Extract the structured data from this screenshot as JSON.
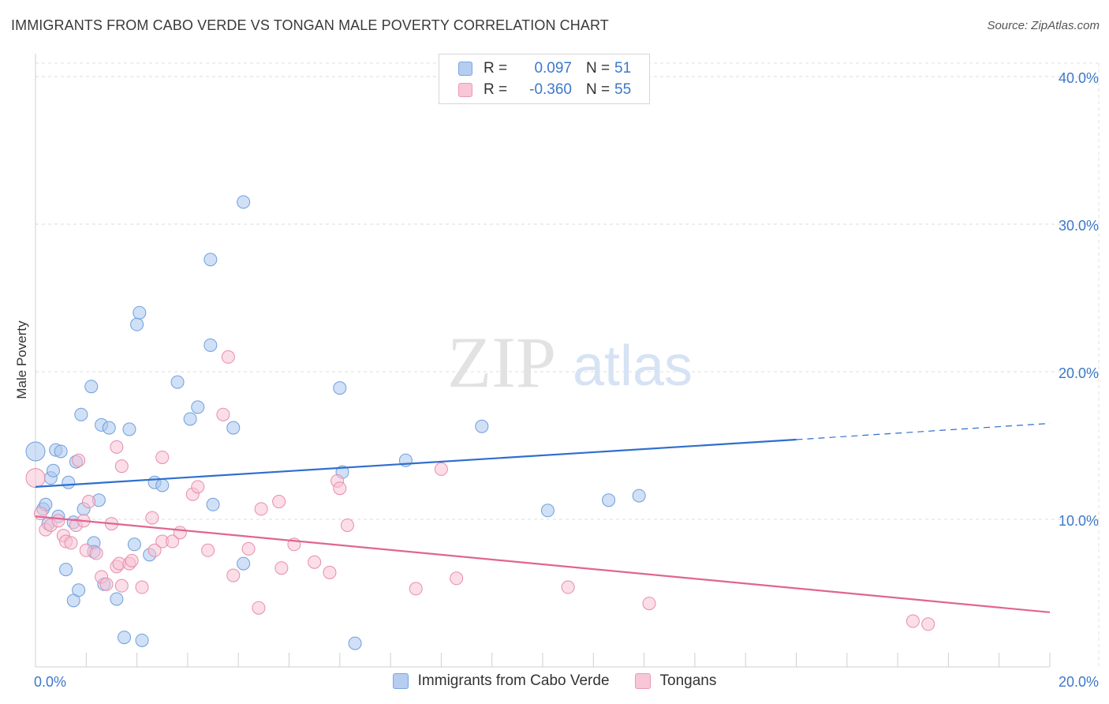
{
  "header": {
    "title": "IMMIGRANTS FROM CABO VERDE VS TONGAN MALE POVERTY CORRELATION CHART",
    "source": "Source: ZipAtlas.com"
  },
  "watermark": {
    "zip": "ZIP",
    "atlas": "atlas"
  },
  "legend": {
    "rows": [
      {
        "r_label": "R =",
        "r_value": "0.097",
        "n_label": "N =",
        "n_value": "51",
        "color": "#b5cdf0",
        "border": "#7aa6e0"
      },
      {
        "r_label": "R =",
        "r_value": "-0.360",
        "n_label": "N =",
        "n_value": "55",
        "color": "#f8c6d6",
        "border": "#eb9ab6"
      }
    ]
  },
  "bottom_legend": {
    "items": [
      {
        "label": "Immigrants from Cabo Verde",
        "color": "#b5cdf0",
        "border": "#7aa6e0"
      },
      {
        "label": "Tongans",
        "color": "#f8c6d6",
        "border": "#eb9ab6"
      }
    ]
  },
  "chart_data": {
    "type": "scatter",
    "title": "IMMIGRANTS FROM CABO VERDE VS TONGAN MALE POVERTY CORRELATION CHART",
    "xlabel": "",
    "ylabel": "Male Poverty",
    "xlim": [
      0,
      20
    ],
    "ylim": [
      0,
      40
    ],
    "x_tick_labels": [
      {
        "value": 0,
        "label": "0.0%"
      },
      {
        "value": 20,
        "label": "20.0%"
      }
    ],
    "y_tick_labels": [
      {
        "value": 10,
        "label": "10.0%"
      },
      {
        "value": 20,
        "label": "20.0%"
      },
      {
        "value": 30,
        "label": "30.0%"
      },
      {
        "value": 40,
        "label": "40.0%"
      }
    ],
    "series": [
      {
        "name": "Immigrants from Cabo Verde",
        "color": "#a9c6ee",
        "stroke": "#6f9fdc",
        "line_color": "#2f6fcd",
        "trend": {
          "x0": 0,
          "y0": 12.2,
          "x1": 15,
          "y1": 15.4,
          "dash_to_x": 20,
          "dash_to_y": 16.5
        },
        "points": [
          [
            0.0,
            14.6
          ],
          [
            0.15,
            10.7
          ],
          [
            0.2,
            11.0
          ],
          [
            0.25,
            9.7
          ],
          [
            0.3,
            12.8
          ],
          [
            0.35,
            13.3
          ],
          [
            0.4,
            14.7
          ],
          [
            0.45,
            10.2
          ],
          [
            0.5,
            14.6
          ],
          [
            0.6,
            6.6
          ],
          [
            0.65,
            12.5
          ],
          [
            0.75,
            9.8
          ],
          [
            0.75,
            4.5
          ],
          [
            0.8,
            13.9
          ],
          [
            0.85,
            5.2
          ],
          [
            0.9,
            17.1
          ],
          [
            0.95,
            10.7
          ],
          [
            1.1,
            19.0
          ],
          [
            1.15,
            8.4
          ],
          [
            1.15,
            7.8
          ],
          [
            1.25,
            11.3
          ],
          [
            1.3,
            16.4
          ],
          [
            1.35,
            5.6
          ],
          [
            1.45,
            16.2
          ],
          [
            1.6,
            4.6
          ],
          [
            1.75,
            2.0
          ],
          [
            1.85,
            16.1
          ],
          [
            1.95,
            8.3
          ],
          [
            2.0,
            23.2
          ],
          [
            2.05,
            24.0
          ],
          [
            2.1,
            1.8
          ],
          [
            2.25,
            7.6
          ],
          [
            2.35,
            12.5
          ],
          [
            2.5,
            12.3
          ],
          [
            2.8,
            19.3
          ],
          [
            3.05,
            16.8
          ],
          [
            3.2,
            17.6
          ],
          [
            3.45,
            21.8
          ],
          [
            3.45,
            27.6
          ],
          [
            3.5,
            11.0
          ],
          [
            3.9,
            16.2
          ],
          [
            4.1,
            7.0
          ],
          [
            4.1,
            31.5
          ],
          [
            6.0,
            18.9
          ],
          [
            6.05,
            13.2
          ],
          [
            6.3,
            1.6
          ],
          [
            7.3,
            14.0
          ],
          [
            8.8,
            16.3
          ],
          [
            10.1,
            10.6
          ],
          [
            11.3,
            11.3
          ],
          [
            11.9,
            11.6
          ]
        ]
      },
      {
        "name": "Tongans",
        "color": "#f8c2d3",
        "stroke": "#e88cae",
        "line_color": "#e06593",
        "trend": {
          "x0": 0,
          "y0": 10.2,
          "x1": 20,
          "y1": 3.7
        },
        "points": [
          [
            0.0,
            12.8
          ],
          [
            0.1,
            10.4
          ],
          [
            0.2,
            9.3
          ],
          [
            0.3,
            9.6
          ],
          [
            0.45,
            9.9
          ],
          [
            0.55,
            8.9
          ],
          [
            0.6,
            8.5
          ],
          [
            0.7,
            8.4
          ],
          [
            0.8,
            9.6
          ],
          [
            0.85,
            14.0
          ],
          [
            0.95,
            9.9
          ],
          [
            1.0,
            7.9
          ],
          [
            1.05,
            11.2
          ],
          [
            1.2,
            7.7
          ],
          [
            1.3,
            6.1
          ],
          [
            1.4,
            5.6
          ],
          [
            1.5,
            9.7
          ],
          [
            1.6,
            6.8
          ],
          [
            1.6,
            14.9
          ],
          [
            1.65,
            7.0
          ],
          [
            1.7,
            13.6
          ],
          [
            1.7,
            5.5
          ],
          [
            1.85,
            7.0
          ],
          [
            1.9,
            7.2
          ],
          [
            2.1,
            5.4
          ],
          [
            2.3,
            10.1
          ],
          [
            2.35,
            7.9
          ],
          [
            2.5,
            8.5
          ],
          [
            2.5,
            14.2
          ],
          [
            2.7,
            8.5
          ],
          [
            2.85,
            9.1
          ],
          [
            3.1,
            11.7
          ],
          [
            3.2,
            12.2
          ],
          [
            3.4,
            7.9
          ],
          [
            3.7,
            17.1
          ],
          [
            3.8,
            21.0
          ],
          [
            3.9,
            6.2
          ],
          [
            4.2,
            8.0
          ],
          [
            4.4,
            4.0
          ],
          [
            4.45,
            10.7
          ],
          [
            4.8,
            11.2
          ],
          [
            4.85,
            6.7
          ],
          [
            5.1,
            8.3
          ],
          [
            5.5,
            7.1
          ],
          [
            5.8,
            6.4
          ],
          [
            5.95,
            12.6
          ],
          [
            6.0,
            12.1
          ],
          [
            6.15,
            9.6
          ],
          [
            7.5,
            5.3
          ],
          [
            8.0,
            13.4
          ],
          [
            8.3,
            6.0
          ],
          [
            10.5,
            5.4
          ],
          [
            12.1,
            4.3
          ],
          [
            17.3,
            3.1
          ],
          [
            17.6,
            2.9
          ]
        ]
      }
    ]
  }
}
